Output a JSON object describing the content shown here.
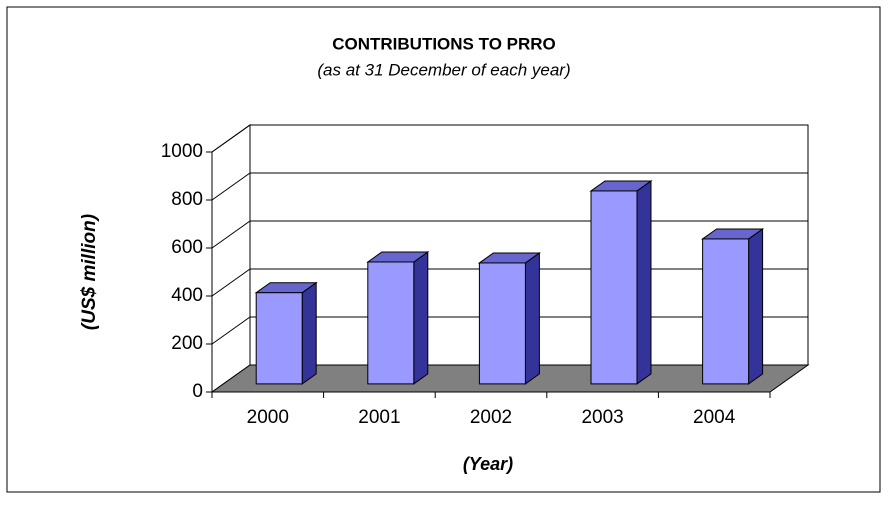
{
  "chart_data": {
    "type": "bar3d",
    "title": "CONTRIBUTIONS TO PRRO",
    "subtitle": "(as at 31 December of each year)",
    "y_label": "(US$ million)",
    "x_label": "(Year)",
    "categories": [
      "2000",
      "2001",
      "2002",
      "2003",
      "2004"
    ],
    "values": [
      380,
      508,
      504,
      804,
      604
    ],
    "color": "#9999ff",
    "ylim": [
      0,
      1000
    ],
    "yticks": [
      0,
      200,
      400,
      600,
      800,
      1000
    ],
    "grid": true
  }
}
